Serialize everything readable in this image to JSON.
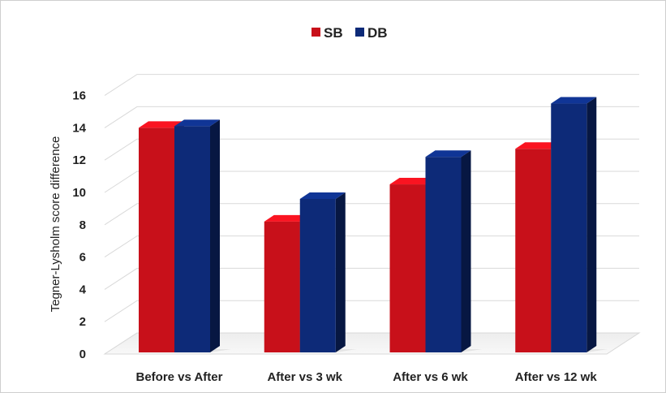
{
  "chart_data": {
    "type": "bar",
    "categories": [
      "Before vs After",
      "After vs 3 wk",
      "After vs 6 wk",
      "After vs 12 wk"
    ],
    "series": [
      {
        "name": "SB",
        "values": [
          14.0,
          8.2,
          10.5,
          12.7
        ],
        "color": "#c8101a"
      },
      {
        "name": "DB",
        "values": [
          14.1,
          9.6,
          12.2,
          15.5
        ],
        "color": "#0d2a78"
      }
    ],
    "xlabel": "",
    "ylabel": "Tegner-Lysholm score difference",
    "ylim": [
      0,
      16
    ],
    "yticks": [
      0,
      2,
      4,
      6,
      8,
      10,
      12,
      14,
      16
    ],
    "grid": true,
    "legend_position": "top-center",
    "style": "3d-clustered-column"
  }
}
